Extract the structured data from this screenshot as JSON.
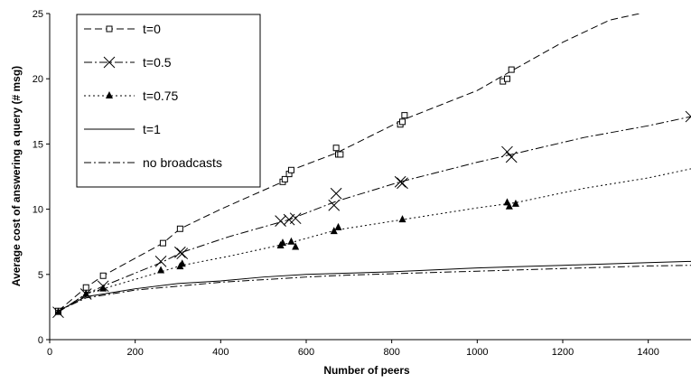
{
  "chart_data": {
    "type": "line",
    "xlabel": "Number of peers",
    "ylabel": "Average cost of answering a query (# msg)",
    "xlim": [
      0,
      1500
    ],
    "ylim": [
      0,
      25
    ],
    "xticks": [
      0,
      200,
      400,
      600,
      800,
      1000,
      1200,
      1400
    ],
    "yticks": [
      0,
      5,
      10,
      15,
      20,
      25
    ],
    "grid": false,
    "legend": "top-left",
    "series": [
      {
        "name": "t=0",
        "marker": "square",
        "dash": "8,4",
        "points": [
          [
            20,
            2.2
          ],
          [
            85,
            4.0
          ],
          [
            125,
            4.9
          ],
          [
            265,
            7.4
          ],
          [
            305,
            8.5
          ],
          [
            545,
            12.1
          ],
          [
            550,
            12.3
          ],
          [
            560,
            12.7
          ],
          [
            565,
            13.0
          ],
          [
            670,
            14.7
          ],
          [
            675,
            14.2
          ],
          [
            680,
            14.2
          ],
          [
            820,
            16.5
          ],
          [
            825,
            16.7
          ],
          [
            830,
            17.2
          ],
          [
            1060,
            19.8
          ],
          [
            1070,
            20.0
          ],
          [
            1080,
            20.7
          ]
        ],
        "line": [
          [
            20,
            2.2
          ],
          [
            85,
            4.0
          ],
          [
            125,
            4.9
          ],
          [
            265,
            7.4
          ],
          [
            305,
            8.5
          ],
          [
            400,
            10.0
          ],
          [
            545,
            12.1
          ],
          [
            565,
            13.0
          ],
          [
            670,
            14.3
          ],
          [
            830,
            16.9
          ],
          [
            1000,
            19.1
          ],
          [
            1080,
            20.6
          ],
          [
            1200,
            22.8
          ],
          [
            1310,
            24.5
          ],
          [
            1380,
            25.0
          ]
        ]
      },
      {
        "name": "t=0.5",
        "marker": "x",
        "dash": "9,3,2,3",
        "points": [
          [
            20,
            2.1
          ],
          [
            85,
            3.5
          ],
          [
            125,
            4.1
          ],
          [
            260,
            6.0
          ],
          [
            305,
            6.7
          ],
          [
            310,
            6.6
          ],
          [
            540,
            9.1
          ],
          [
            560,
            9.2
          ],
          [
            575,
            9.3
          ],
          [
            665,
            10.3
          ],
          [
            670,
            11.2
          ],
          [
            820,
            12.1
          ],
          [
            825,
            12.0
          ],
          [
            1070,
            14.4
          ],
          [
            1080,
            14.0
          ],
          [
            1500,
            17.1
          ]
        ],
        "line": [
          [
            20,
            2.1
          ],
          [
            85,
            3.5
          ],
          [
            125,
            4.1
          ],
          [
            260,
            5.9
          ],
          [
            310,
            6.7
          ],
          [
            420,
            7.9
          ],
          [
            560,
            9.2
          ],
          [
            670,
            10.6
          ],
          [
            820,
            12.1
          ],
          [
            1000,
            13.6
          ],
          [
            1080,
            14.2
          ],
          [
            1250,
            15.5
          ],
          [
            1400,
            16.4
          ],
          [
            1500,
            17.1
          ]
        ]
      },
      {
        "name": "t=0.75",
        "marker": "triangle",
        "dash": "2,3",
        "points": [
          [
            20,
            2.1
          ],
          [
            85,
            3.5
          ],
          [
            125,
            3.9
          ],
          [
            260,
            5.3
          ],
          [
            305,
            5.6
          ],
          [
            310,
            5.8
          ],
          [
            540,
            7.2
          ],
          [
            545,
            7.4
          ],
          [
            565,
            7.5
          ],
          [
            575,
            7.1
          ],
          [
            665,
            8.3
          ],
          [
            675,
            8.6
          ],
          [
            825,
            9.2
          ],
          [
            1070,
            10.5
          ],
          [
            1075,
            10.2
          ],
          [
            1090,
            10.4
          ]
        ],
        "line": [
          [
            20,
            2.1
          ],
          [
            85,
            3.5
          ],
          [
            125,
            3.9
          ],
          [
            260,
            5.2
          ],
          [
            310,
            5.7
          ],
          [
            420,
            6.4
          ],
          [
            560,
            7.4
          ],
          [
            670,
            8.4
          ],
          [
            825,
            9.2
          ],
          [
            1000,
            10.1
          ],
          [
            1090,
            10.5
          ],
          [
            1250,
            11.6
          ],
          [
            1400,
            12.4
          ],
          [
            1500,
            13.1
          ]
        ]
      },
      {
        "name": "t=1",
        "marker": "none",
        "dash": "",
        "points": [],
        "line": [
          [
            20,
            2.2
          ],
          [
            85,
            3.3
          ],
          [
            125,
            3.5
          ],
          [
            200,
            3.9
          ],
          [
            300,
            4.3
          ],
          [
            400,
            4.5
          ],
          [
            500,
            4.8
          ],
          [
            600,
            5.0
          ],
          [
            700,
            5.1
          ],
          [
            800,
            5.2
          ],
          [
            900,
            5.35
          ],
          [
            1000,
            5.5
          ],
          [
            1100,
            5.6
          ],
          [
            1200,
            5.7
          ],
          [
            1300,
            5.8
          ],
          [
            1400,
            5.9
          ],
          [
            1500,
            6.0
          ]
        ]
      },
      {
        "name": "no broadcasts",
        "marker": "none",
        "dash": "8,3,2,3",
        "points": [],
        "line": [
          [
            20,
            2.2
          ],
          [
            85,
            3.2
          ],
          [
            125,
            3.4
          ],
          [
            200,
            3.8
          ],
          [
            300,
            4.1
          ],
          [
            400,
            4.4
          ],
          [
            500,
            4.6
          ],
          [
            600,
            4.8
          ],
          [
            700,
            4.95
          ],
          [
            800,
            5.05
          ],
          [
            900,
            5.15
          ],
          [
            1000,
            5.25
          ],
          [
            1100,
            5.35
          ],
          [
            1200,
            5.45
          ],
          [
            1300,
            5.55
          ],
          [
            1400,
            5.65
          ],
          [
            1500,
            5.7
          ]
        ]
      }
    ]
  }
}
